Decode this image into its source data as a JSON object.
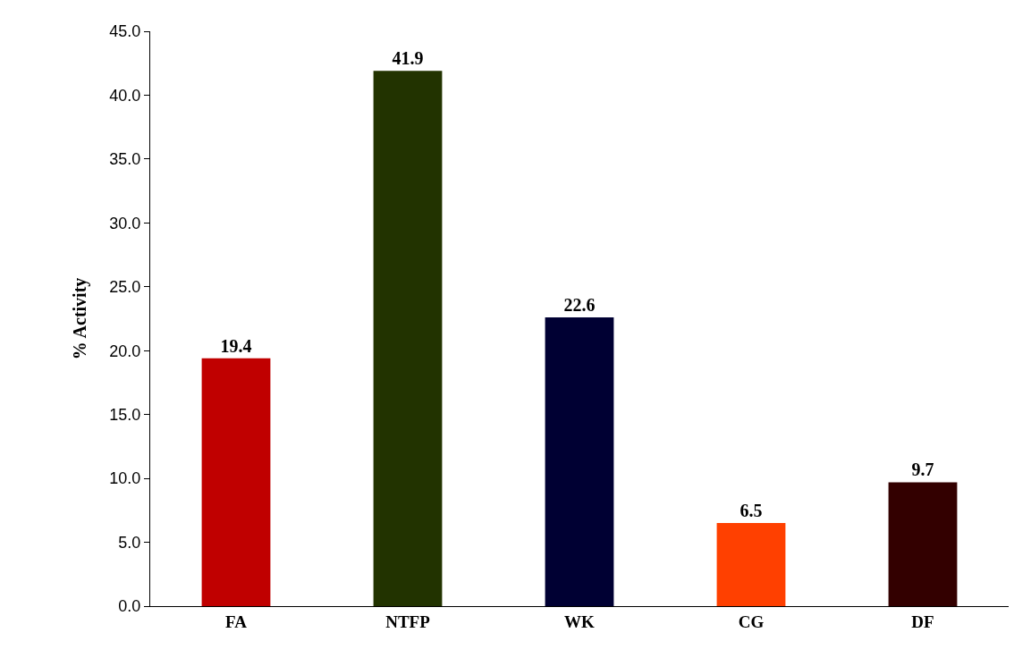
{
  "chart_data": {
    "type": "bar",
    "ylabel": "% Activity",
    "categories": [
      "FA",
      "NTFP",
      "WK",
      "CG",
      "DF"
    ],
    "values": [
      19.4,
      41.9,
      22.6,
      6.5,
      9.7
    ],
    "colors": [
      "#c00000",
      "#223300",
      "#000033",
      "#ff4000",
      "#330000"
    ],
    "ylim": [
      0,
      45
    ],
    "yticks": [
      {
        "value": 0,
        "label": "0.0"
      },
      {
        "value": 5,
        "label": "5.0"
      },
      {
        "value": 10,
        "label": "10.0"
      },
      {
        "value": 15,
        "label": "15.0"
      },
      {
        "value": 20,
        "label": "20.0"
      },
      {
        "value": 25,
        "label": "25.0"
      },
      {
        "value": 30,
        "label": "30.0"
      },
      {
        "value": 35,
        "label": "35.0"
      },
      {
        "value": 40,
        "label": "40.0"
      },
      {
        "value": 45,
        "label": "45.0"
      }
    ],
    "data_labels": true
  }
}
